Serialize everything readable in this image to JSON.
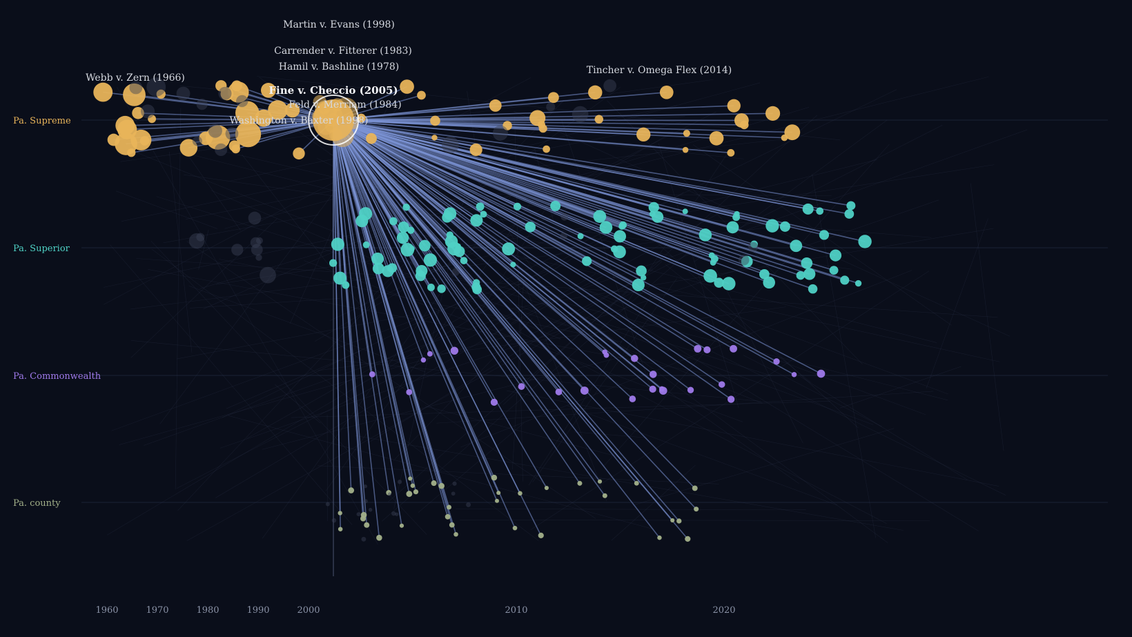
{
  "lanes": [
    {
      "key": "supreme",
      "label": "Pa. Supreme",
      "color": "#e8b45a"
    },
    {
      "key": "superior",
      "label": "Pa. Superior",
      "color": "#4fd1c5"
    },
    {
      "key": "commonwealth",
      "label": "Pa. Commonwealth",
      "color": "#9f7aea"
    },
    {
      "key": "county",
      "label": "Pa. county",
      "color": "#a3b18a"
    }
  ],
  "axis": {
    "ticks": [
      1960,
      1970,
      1980,
      1990,
      2000,
      2010,
      2020
    ]
  },
  "focus_case": {
    "label": "Fine v. Checcio (2005)",
    "year": 2001.2,
    "court": "supreme"
  },
  "labeled_cases": [
    {
      "label": "Martin v. Evans (1998)",
      "year": 2001.5
    },
    {
      "label": "Carrender v. Fitterer (1983)",
      "year": 2001.7
    },
    {
      "label": "Hamil v. Bashline (1978)",
      "year": 2001.5
    },
    {
      "label": "Webb v. Zern (1966)",
      "year": 1962.5
    },
    {
      "label": "Feld v. Merriam (1984)",
      "year": 2001.8
    },
    {
      "label": "Washington v. Baxter (1998)",
      "year": 1998.0
    },
    {
      "label": "Tincher v. Omega Flex (2014)",
      "year": 2016.3
    }
  ],
  "colors": {
    "background": "#0a0e1a",
    "link": "#7b93d6",
    "faint": "#3a4560"
  }
}
